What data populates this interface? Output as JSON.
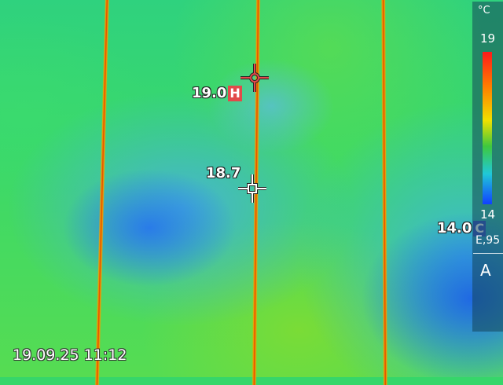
{
  "readouts": {
    "hot_spot": {
      "value": "19.0",
      "marker": "H"
    },
    "center_spot": {
      "value": "18.7"
    },
    "cold_spot": {
      "value": "14.0",
      "marker": "C"
    }
  },
  "scale": {
    "unit": "°C",
    "max": "19",
    "min": "14",
    "emissivity": "E,95",
    "mode": "A",
    "palette": [
      "#ff1a1a",
      "#ff7a00",
      "#f0e000",
      "#3ec83e",
      "#20c8d8",
      "#1040ff"
    ]
  },
  "timestamp": "19.09.25 11:12",
  "icons": {
    "hot_spot": "crosshair-circle-icon",
    "center_spot": "crosshair-square-icon"
  },
  "colors": {
    "hot_marker": "#e24a4a",
    "cold_marker": "#3a58c9"
  }
}
